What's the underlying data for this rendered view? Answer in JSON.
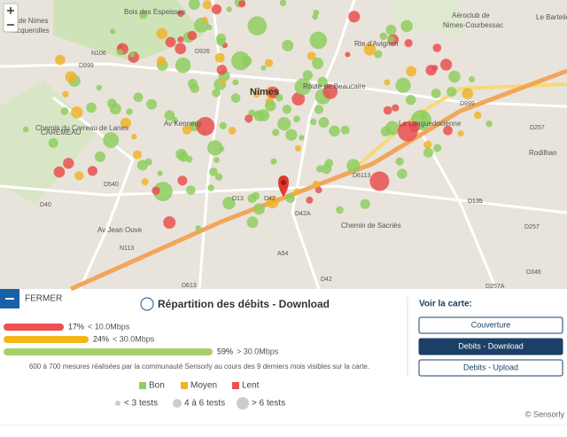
{
  "map": {
    "labels": [
      "Bois des Espeisses",
      "olf de Nimes",
      "Vacquerolles",
      "Aéroclub de",
      "Nimes-Courbessac",
      "Nîmes",
      "Route de Beaucaire",
      "Rte d'Avignon",
      "CARÈMEAU",
      "Av Kennedy",
      "Chemin du Carreau de Lanes",
      "Rodilhan",
      "Le Bartelier",
      "La Languedocienne",
      "Chemin de Sacriès",
      "Av Jean Ouve",
      "D999",
      "N106",
      "D926",
      "D40",
      "D540",
      "D13",
      "D42",
      "D42A",
      "D6113",
      "D135",
      "D257",
      "D346",
      "D257A",
      "D613",
      "A54",
      "N113",
      "D999",
      "D257",
      "D135",
      "D42"
    ]
  },
  "panel": {
    "close": "FERMER",
    "title": "Répartition des débits - Download",
    "debits": {
      "values": [
        17,
        24,
        59
      ],
      "value_labels": [
        "17%",
        "24%",
        "59%"
      ],
      "thresholds": [
        "< 10.0Mbps",
        "< 30.0Mbps",
        "> 30.0Mbps"
      ],
      "colors": [
        "#ef4f4f",
        "#f2b616",
        "#a7d06a"
      ]
    },
    "note": "600 à 700 mesures réalisées par la communauté Sensorly au cours des 9 derniers mois visibles sur la carte.",
    "legend": [
      {
        "label": "Bon",
        "color": "#8fce5f"
      },
      {
        "label": "Moyen",
        "color": "#f0b429"
      },
      {
        "label": "Lent",
        "color": "#ea5050"
      }
    ],
    "sizes": [
      "< 3 tests",
      "4 à 6 tests",
      "> 6 tests"
    ],
    "view": {
      "title": "Voir la carte:",
      "buttons": [
        "Couverture",
        "Debits - Download",
        "Debits - Upload"
      ]
    },
    "credit": "© Sensorly"
  }
}
